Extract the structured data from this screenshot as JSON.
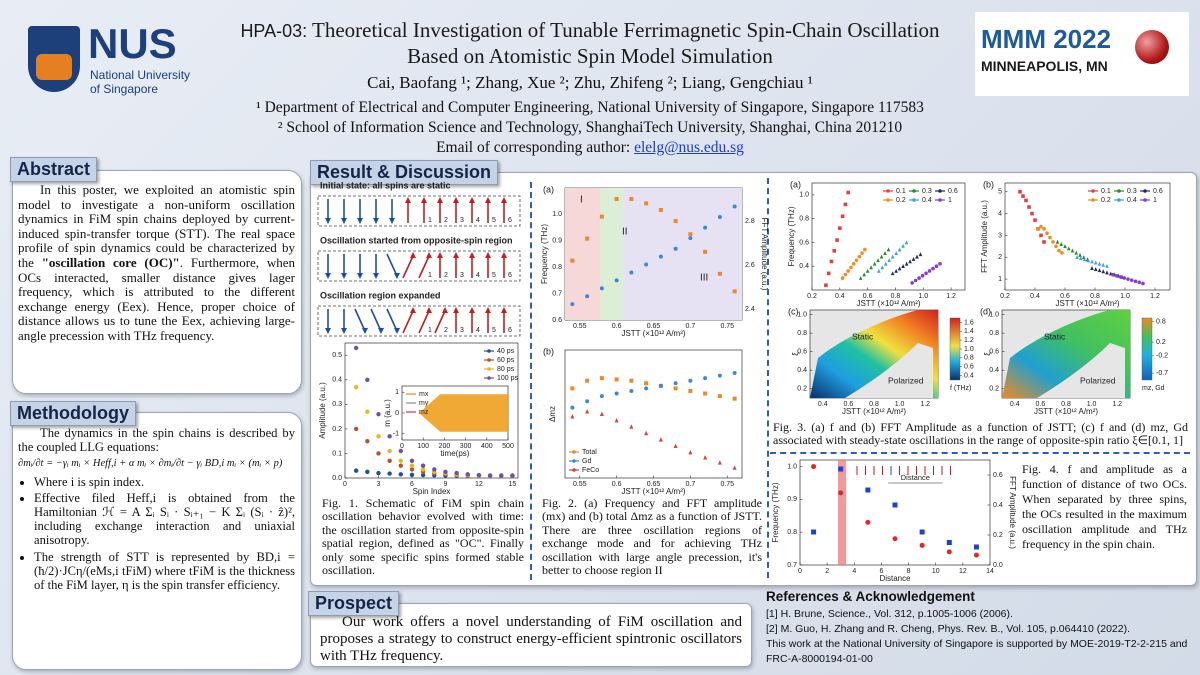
{
  "header": {
    "code": "HPA-03:",
    "title": "Theoretical Investigation of Tunable Ferrimagnetic Spin-Chain Oscillation Based on Atomistic Spin Model Simulation",
    "authors": "Cai, Baofang ¹; Zhang, Xue ²; Zhu, Zhifeng ²; Liang, Gengchiau ¹",
    "affiliations": [
      "¹ Department of Electrical and Computer Engineering, National University of Singapore, Singapore 117583",
      "² School of Information Science and Technology, ShanghaiTech University, Shanghai, China 201210"
    ],
    "email_label": "Email of corresponding author:",
    "email": "elelg@nus.edu.sg"
  },
  "logos": {
    "nus": "NUS",
    "nus_lines": [
      "National University",
      "of Singapore"
    ],
    "conference": "MMM 2022",
    "location": "MINNEAPOLIS, MN"
  },
  "abstract": {
    "heading": "Abstract",
    "parts": [
      "In this poster, we exploited an atomistic spin model to investigate a non-uniform oscillation dynamics in FiM spin chains deployed by current-induced spin-transfer torque (STT). The real space profile of spin dynamics could be characterized by the ",
      "\"oscillation core (OC)\"",
      ". Furthermore, when OCs interacted, smaller distance gives lager frequency, which is attributed to the different exchange energy (Eex). Hence, proper choice of distance allows us to tune the Eex, achieving large-angle precession with THz frequency."
    ]
  },
  "methodology": {
    "heading": "Methodology",
    "intro": "The dynamics in the spin chains is described by the coupled LLG equations:",
    "equation": "∂mᵢ/∂t = −γᵢ mᵢ × Heff,i + α mᵢ × ∂mᵢ/∂t − γᵢ BD,i mᵢ × (mᵢ × p)",
    "bullets": [
      "Where i is spin index.",
      "Effective filed Heff,i is obtained from the Hamiltonian ℋ = A Σᵢ Sᵢ · Sᵢ₊₁ − K Σᵢ (Sᵢ · ẑ)², including exchange interaction and uniaxial anisotropy.",
      "The strength of STT is represented by BD,i = (ħ/2)·JCη/(eMs,i tFiM) where tFiM is the thickness of the FiM layer, η is the spin transfer efficiency."
    ]
  },
  "results": {
    "heading": "Result & Discussion"
  },
  "fig1": {
    "schematic_labels": [
      "Initial state: all spins are static",
      "Oscillation started from opposite-spin region",
      "Oscillation region expanded"
    ],
    "spin_indices": [
      1,
      2,
      3,
      4,
      5,
      6
    ],
    "chart": {
      "type": "line",
      "xlabel": "Spin Index",
      "ylabel": "Amplitude (a.u.)",
      "xlim": [
        0,
        15.5
      ],
      "xticks": [
        0,
        3,
        6,
        9,
        12,
        15
      ],
      "ylim": [
        0,
        0.55
      ],
      "yticks": [
        {
          "value": 0,
          "label": "0.0"
        },
        0.1,
        0.2,
        0.3,
        0.4,
        0.5
      ],
      "legend": "top-right",
      "x": [
        1,
        2,
        3,
        4,
        5,
        6,
        7,
        8,
        9,
        10,
        11,
        12,
        13,
        14,
        15
      ],
      "series": [
        {
          "name": "40 ps",
          "color": "#1f4e9c",
          "values": [
            0.03,
            0.025,
            0.02,
            0.018,
            0.015,
            0.013,
            0.012,
            0.011,
            0.01,
            0.01,
            0.01,
            0.01,
            0.01,
            0.01,
            0.01
          ]
        },
        {
          "name": "60 ps",
          "color": "#b5532b",
          "values": [
            0.2,
            0.15,
            0.1,
            0.07,
            0.05,
            0.035,
            0.025,
            0.02,
            0.015,
            0.012,
            0.01,
            0.01,
            0.01,
            0.01,
            0.01
          ]
        },
        {
          "name": "80 ps",
          "color": "#e8b820",
          "values": [
            0.37,
            0.27,
            0.17,
            0.11,
            0.07,
            0.05,
            0.035,
            0.025,
            0.02,
            0.015,
            0.012,
            0.01,
            0.01,
            0.01,
            0.01
          ]
        },
        {
          "name": "100 ps",
          "color": "#6f4fa8",
          "values": [
            0.53,
            0.4,
            0.26,
            0.17,
            0.11,
            0.07,
            0.05,
            0.035,
            0.025,
            0.02,
            0.015,
            0.012,
            0.01,
            0.01,
            0.01
          ]
        }
      ]
    },
    "inset": {
      "type": "line",
      "xlabel": "time(ps)",
      "ylabel": "m (a.u.)",
      "xlim": [
        0,
        500
      ],
      "xticks": [
        0,
        100,
        200,
        300,
        400,
        500
      ],
      "ylim": [
        -1.3,
        1.3
      ],
      "yticks": [
        -1,
        0,
        1
      ],
      "legend": "top-left",
      "legend_items": [
        {
          "name": "mx",
          "color": "#e6900f"
        },
        {
          "name": "my",
          "color": "#888888"
        },
        {
          "name": "mz",
          "color": "#c04040"
        }
      ]
    },
    "caption": "Fig. 1. Schematic of FiM spin chain oscillation behavior evolved with time: the oscillation started from opposite-spin spatial region, defined as \"OC\". Finally only some specific spins formed stable oscillation."
  },
  "fig2": {
    "a": {
      "type": "line",
      "panel": "(a)",
      "xlabel": "JSTT (×10¹² A/m²)",
      "ylabel": "Frequency (THz)",
      "y2label": "FFT Amplitude (a.u.)",
      "annotations": [
        "I",
        "II",
        "III"
      ],
      "xlim": [
        0.53,
        0.77
      ],
      "xticks": [
        0.55,
        0.6,
        0.65,
        0.7,
        0.75
      ],
      "ylim": [
        0.6,
        1.1
      ],
      "yticks": [
        0.6,
        0.7,
        0.8,
        0.9,
        {
          "value": 1,
          "label": "1.0"
        }
      ],
      "y2lim": [
        2.35,
        2.95
      ],
      "y2ticks": [
        2.4,
        2.6,
        2.8
      ],
      "x": [
        0.54,
        0.56,
        0.58,
        0.6,
        0.62,
        0.64,
        0.66,
        0.68,
        0.7,
        0.72,
        0.74,
        0.76
      ],
      "series": [
        {
          "color": "#3b88d8",
          "marker": "circle",
          "values": [
            0.66,
            0.69,
            0.72,
            0.75,
            0.78,
            0.81,
            0.84,
            0.87,
            0.91,
            0.95,
            0.99,
            1.03
          ]
        },
        {
          "color": "#e8892a",
          "marker": "square",
          "axis": "y2",
          "values": [
            2.62,
            2.72,
            2.82,
            2.9,
            2.9,
            2.88,
            2.85,
            2.8,
            2.74,
            2.66,
            2.56,
            2.48
          ]
        }
      ]
    },
    "b": {
      "type": "line",
      "panel": "(b)",
      "xlabel": "JSTT (×10¹² A/m²)",
      "ylabel": "Δmz",
      "xlim": [
        0.53,
        0.77
      ],
      "xticks": [
        0.55,
        0.6,
        0.65,
        0.7,
        0.75
      ],
      "ylim": [
        0,
        1
      ],
      "legend": "bottom-left",
      "x": [
        0.54,
        0.56,
        0.58,
        0.6,
        0.62,
        0.64,
        0.66,
        0.68,
        0.7,
        0.72,
        0.74,
        0.76
      ],
      "series": [
        {
          "name": "Total",
          "color": "#e8892a",
          "marker": "square",
          "values": [
            0.7,
            0.76,
            0.78,
            0.77,
            0.76,
            0.74,
            0.72,
            0.7,
            0.68,
            0.66,
            0.64,
            0.62
          ]
        },
        {
          "name": "Gd",
          "color": "#3b88d8",
          "marker": "circle",
          "values": [
            0.55,
            0.6,
            0.64,
            0.66,
            0.68,
            0.7,
            0.72,
            0.74,
            0.76,
            0.78,
            0.8,
            0.82
          ]
        },
        {
          "name": "FeCo",
          "color": "#d9432f",
          "marker": "triangle",
          "values": [
            0.48,
            0.52,
            0.5,
            0.45,
            0.4,
            0.35,
            0.3,
            0.25,
            0.2,
            0.16,
            0.12,
            0.08
          ]
        }
      ]
    },
    "caption": "Fig. 2. (a) Frequency and FFT amplitude (mx) and (b) total Δmz as a function of JSTT. There are three oscillation regions of exchange mode and for achieving THz oscillation with large angle precession, it's better to choose region II"
  },
  "fig3": {
    "a": {
      "type": "line",
      "panel": "(a)",
      "xlabel": "JSTT (×10¹² A/m²)",
      "ylabel": "Frequency (THz)",
      "xlim": [
        0.2,
        1.3
      ],
      "xticks": [
        0.2,
        0.4,
        0.6,
        0.8,
        {
          "value": 1,
          "label": "1.0"
        },
        1.2
      ],
      "ylim": [
        0.2,
        1.1
      ],
      "yticks": [
        0.4,
        0.6,
        0.8,
        {
          "value": 1,
          "label": "1.0"
        }
      ],
      "legend": "top-right",
      "legend_columns": 3,
      "series": [
        {
          "name": "0.1",
          "color": "#e04040",
          "marker": "square",
          "x": [
            0.3,
            0.32,
            0.34,
            0.36,
            0.38,
            0.4,
            0.42,
            0.44,
            0.46
          ],
          "values": [
            0.24,
            0.34,
            0.44,
            0.53,
            0.62,
            0.72,
            0.82,
            0.92,
            1.02
          ]
        },
        {
          "name": "0.2",
          "color": "#f08c1e",
          "marker": "circle",
          "x": [
            0.42,
            0.44,
            0.46,
            0.48,
            0.5,
            0.52,
            0.54,
            0.56,
            0.58
          ],
          "values": [
            0.3,
            0.33,
            0.36,
            0.39,
            0.42,
            0.45,
            0.48,
            0.51,
            0.54
          ]
        },
        {
          "name": "0.3",
          "color": "#2a8a2a",
          "marker": "triangle",
          "x": [
            0.55,
            0.575,
            0.6,
            0.625,
            0.65,
            0.675,
            0.7,
            0.725,
            0.75
          ],
          "values": [
            0.3,
            0.33,
            0.36,
            0.39,
            0.42,
            0.45,
            0.48,
            0.51,
            0.54
          ]
        },
        {
          "name": "0.4",
          "color": "#3aa0e0",
          "marker": "triangle",
          "x": [
            0.68,
            0.705,
            0.73,
            0.755,
            0.78,
            0.805,
            0.83,
            0.855,
            0.88
          ],
          "values": [
            0.36,
            0.39,
            0.42,
            0.45,
            0.48,
            0.51,
            0.54,
            0.57,
            0.6
          ]
        },
        {
          "name": "0.6",
          "color": "#1a2a6a",
          "marker": "triangle",
          "x": [
            0.78,
            0.805,
            0.83,
            0.855,
            0.88,
            0.905,
            0.93,
            0.955,
            0.98
          ],
          "values": [
            0.34,
            0.36,
            0.38,
            0.4,
            0.42,
            0.44,
            0.46,
            0.48,
            0.5
          ]
        },
        {
          "name": "1",
          "color": "#8a3ad0",
          "marker": "circle",
          "x": [
            0.92,
            0.945,
            0.97,
            0.995,
            1.02,
            1.045,
            1.07,
            1.095,
            1.12
          ],
          "values": [
            0.26,
            0.28,
            0.3,
            0.32,
            0.34,
            0.36,
            0.38,
            0.4,
            0.42
          ]
        }
      ]
    },
    "b": {
      "type": "line",
      "panel": "(b)",
      "xlabel": "JSTT (×10¹² A/m²)",
      "ylabel": "FFT Amplitude (a.u.)",
      "xlim": [
        0.2,
        1.3
      ],
      "xticks": [
        0.2,
        0.4,
        0.6,
        0.8,
        {
          "value": 1,
          "label": "1.0"
        },
        1.2
      ],
      "ylim": [
        0.5,
        5.4
      ],
      "yticks": [
        1,
        2,
        3,
        4,
        5
      ],
      "legend": "top-right",
      "legend_columns": 3,
      "series": [
        {
          "name": "0.1",
          "color": "#e04040",
          "marker": "square",
          "x": [
            0.3,
            0.32,
            0.34,
            0.36,
            0.38,
            0.4,
            0.42,
            0.44,
            0.46
          ],
          "values": [
            5,
            4.8,
            4.6,
            4.3,
            4,
            3.7,
            3.3,
            3,
            2.7
          ]
        },
        {
          "name": "0.2",
          "color": "#f08c1e",
          "marker": "circle",
          "x": [
            0.42,
            0.44,
            0.46,
            0.48,
            0.5,
            0.52,
            0.54,
            0.56,
            0.58
          ],
          "values": [
            3.3,
            3.4,
            3.3,
            3.1,
            2.9,
            2.7,
            2.5,
            2.3,
            2.2
          ]
        },
        {
          "name": "0.3",
          "color": "#2a8a2a",
          "marker": "triangle",
          "x": [
            0.55,
            0.575,
            0.6,
            0.625,
            0.65,
            0.675,
            0.7,
            0.725,
            0.75
          ],
          "values": [
            2.7,
            2.6,
            2.5,
            2.4,
            2.3,
            2.2,
            2.1,
            2,
            1.9
          ]
        },
        {
          "name": "0.4",
          "color": "#3aa0e0",
          "marker": "triangle",
          "x": [
            0.68,
            0.705,
            0.73,
            0.755,
            0.78,
            0.805,
            0.83,
            0.855,
            0.88
          ],
          "values": [
            2,
            1.95,
            1.9,
            1.85,
            1.8,
            1.75,
            1.7,
            1.65,
            1.6
          ]
        },
        {
          "name": "0.6",
          "color": "#1a2a6a",
          "marker": "triangle",
          "x": [
            0.78,
            0.805,
            0.83,
            0.855,
            0.88,
            0.905,
            0.93,
            0.955,
            0.98
          ],
          "values": [
            1.5,
            1.45,
            1.4,
            1.35,
            1.3,
            1.25,
            1.2,
            1.15,
            1.1
          ]
        },
        {
          "name": "1",
          "color": "#8a3ad0",
          "marker": "circle",
          "x": [
            0.92,
            0.945,
            0.97,
            0.995,
            1.02,
            1.045,
            1.07,
            1.095,
            1.12
          ],
          "values": [
            1.2,
            1.15,
            1.1,
            1.05,
            1,
            0.95,
            0.9,
            0.85,
            0.8
          ]
        }
      ]
    },
    "c": {
      "type": "heatmap",
      "panel": "(c)",
      "xlabel": "JSTT (×10¹² A/m²)",
      "ylabel": "ξ",
      "xlim": [
        0.3,
        1.3
      ],
      "xticks": [
        0.4,
        0.6,
        0.8,
        {
          "value": 1,
          "label": "1.0"
        },
        1.2
      ],
      "ylim": [
        0.1,
        1.05
      ],
      "yticks": [
        0.2,
        0.4,
        0.6,
        0.8,
        {
          "value": 1,
          "label": "1.0"
        }
      ],
      "labels": [
        "Static",
        "Polarized"
      ],
      "clim": [
        0.3,
        1.7
      ],
      "cticks": [
        0.4,
        0.6,
        0.8,
        {
          "value": 1,
          "label": "1.0"
        },
        1.2,
        1.4,
        1.6
      ],
      "clabel": "f (THz)"
    },
    "d": {
      "type": "heatmap",
      "panel": "(d)",
      "xlabel": "JSTT (×10¹² A/m²)",
      "ylabel": "ξ",
      "xlim": [
        0.3,
        1.3
      ],
      "xticks": [
        0.4,
        0.6,
        0.8,
        {
          "value": 1,
          "label": "1.0"
        },
        1.2
      ],
      "ylim": [
        0.1,
        1.05
      ],
      "yticks": [
        0.2,
        0.4,
        0.6,
        0.8,
        {
          "value": 1,
          "label": "1.0"
        }
      ],
      "labels": [
        "Static",
        "Polarized"
      ],
      "clim": [
        -0.9,
        0.9
      ],
      "cticks": [
        0.8,
        0.2,
        -0.2,
        -0.7
      ],
      "clabel": "mz, Gd"
    },
    "caption": "Fig. 3. (a) f and (b) FFT Amplitude as a function of JSTT; (c) f and (d) mz, Gd associated with steady-state oscillations in the range of opposite-spin ratio ξ∈[0.1, 1]"
  },
  "fig4": {
    "chart": {
      "type": "line",
      "xlabel": "Distance",
      "ylabel": "Frequency (THz)",
      "y2label": "FFT Amplitude (a.u.)",
      "annotation": "Distance",
      "xlim": [
        0,
        14
      ],
      "xticks": [
        0,
        2,
        4,
        6,
        8,
        10,
        12,
        14
      ],
      "ylim": [
        0.7,
        1.02
      ],
      "yticks": [
        0.7,
        0.8,
        0.9,
        {
          "value": 1,
          "label": "1.0"
        }
      ],
      "y2lim": [
        0,
        0.7
      ],
      "y2ticks": [
        {
          "value": 0,
          "label": "0.0"
        },
        0.2,
        0.4,
        0.6
      ],
      "x": [
        1,
        3,
        5,
        7,
        9,
        11,
        13
      ],
      "series": [
        {
          "color": "#e02828",
          "marker": "circle",
          "values": [
            1,
            0.92,
            0.83,
            0.78,
            0.76,
            0.74,
            0.73
          ]
        },
        {
          "color": "#2040d0",
          "marker": "square",
          "axis": "y2",
          "values": [
            0.22,
            0.64,
            0.5,
            0.4,
            0.22,
            0.15,
            0.12
          ]
        }
      ]
    },
    "caption": "Fig. 4. f and amplitude as a function of distance of two OCs. When separated by three spins, the OCs resulted in the maximum oscillation amplitude and THz frequency in the spin chain."
  },
  "prospect": {
    "heading": "Prospect",
    "text": "Our work offers a novel understanding of FiM oscillation and proposes a strategy to construct energy-efficient spintronic oscillators with THz frequency."
  },
  "references": {
    "heading": "References & Acknowledgement",
    "items": [
      "[1] H. Brune, Science., Vol. 312, p.1005-1006 (2006).",
      "[2] M. Guo, H. Zhang and R. Cheng, Phys. Rev. B., Vol. 105, p.064410 (2022).",
      "This work at the National University of Singapore is supported by MOE-2019-T2-2-215 and FRC-A-8000194-01-00"
    ]
  }
}
